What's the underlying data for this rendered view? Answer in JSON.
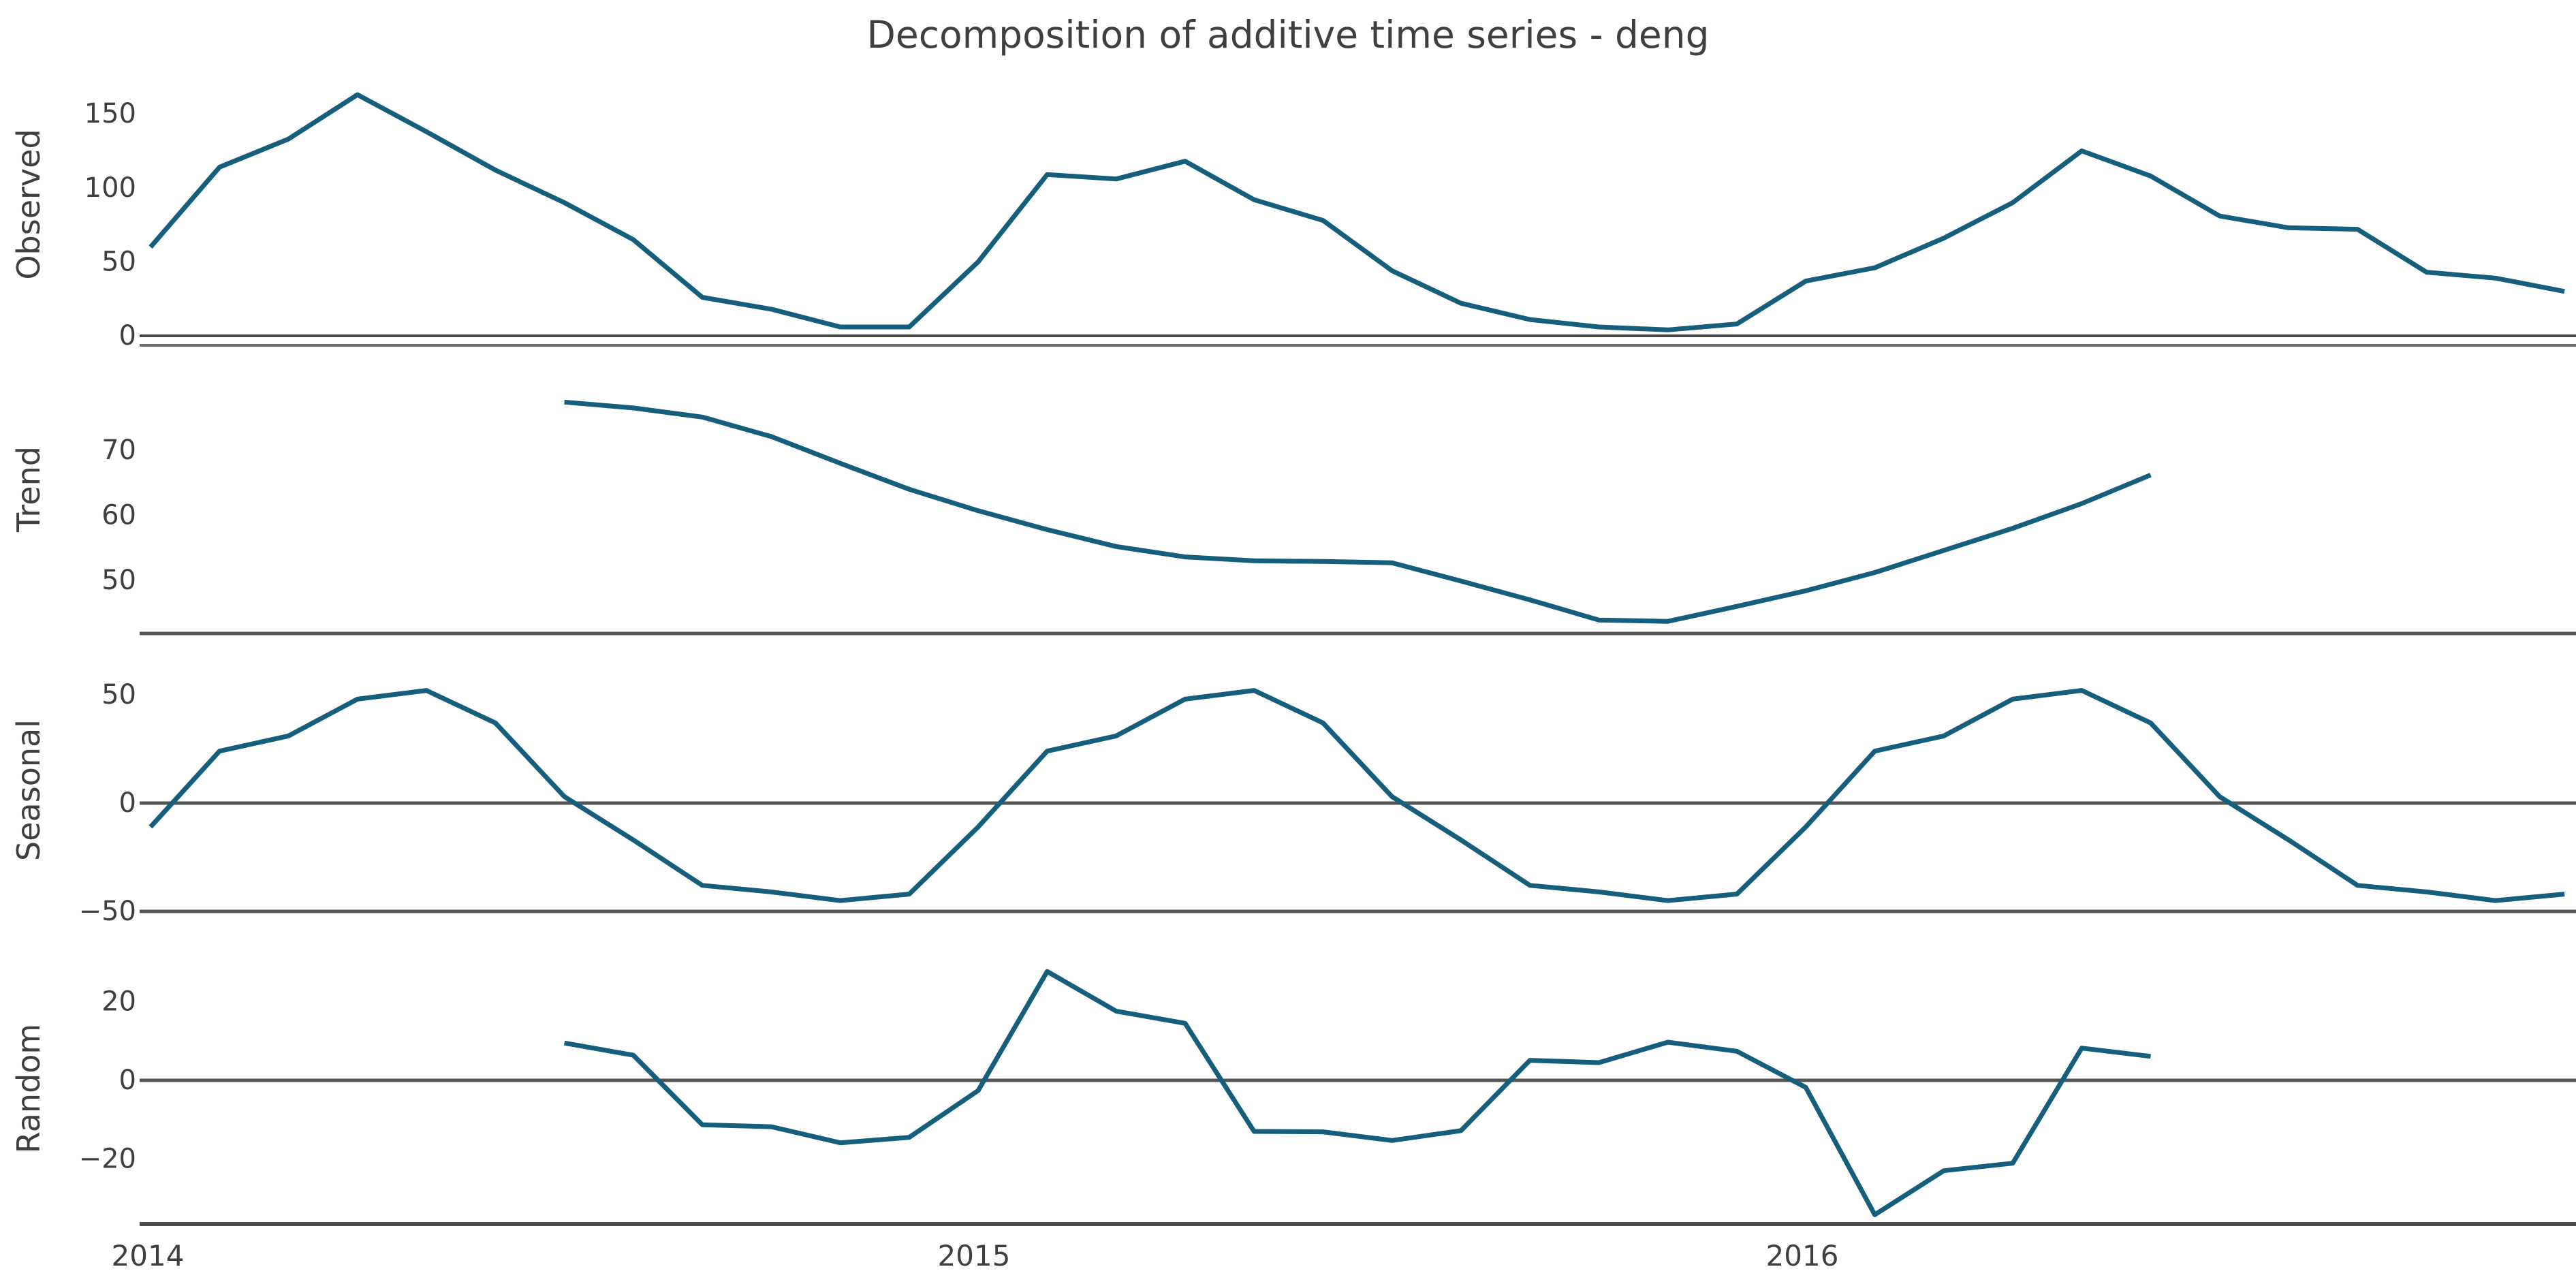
{
  "title": "Decomposition of additive time series - deng",
  "chart_data": {
    "type": "line",
    "title": "Decomposition of additive time series - deng",
    "subtitle": "",
    "legend": "none",
    "grid": "horizontal reference lines at 0 per panel",
    "x_axis": {
      "unit": "year",
      "tick_labels": [
        "2014",
        "2015",
        "2016"
      ],
      "range_start": 2014.0,
      "range_end": 2016.917,
      "frequency": "monthly",
      "n_points": 36
    },
    "line_color": "#155E7C",
    "axis_line_color": "#555555",
    "text_color": "#3f3f3f",
    "panels": [
      {
        "label": "Observed",
        "yticks": [
          0,
          50,
          100,
          150
        ],
        "start_month_index": 0,
        "values": [
          60,
          114,
          133,
          163,
          138,
          112,
          90,
          65,
          26,
          18,
          6,
          6,
          50,
          109,
          106,
          118,
          92,
          78,
          44,
          22,
          11,
          6,
          4,
          8,
          37,
          46,
          66,
          90,
          125,
          108,
          81,
          73,
          72,
          43,
          39,
          30
        ]
      },
      {
        "label": "Trend",
        "yticks": [
          50,
          60,
          70
        ],
        "start_month_index": 6,
        "values": [
          77.4,
          76.5,
          75.1,
          72.1,
          68.0,
          64.0,
          60.7,
          57.8,
          55.2,
          53.6,
          53.0,
          52.9,
          52.7,
          49.9,
          47.0,
          43.9,
          43.7,
          46.0,
          48.4,
          51.2,
          54.6,
          58.0,
          61.8,
          66.2
        ]
      },
      {
        "label": "Seasonal",
        "yticks": [
          -50,
          0,
          50
        ],
        "start_month_index": 0,
        "values": [
          -11,
          24,
          31,
          48,
          52,
          37,
          3,
          -17,
          -38,
          -41,
          -45,
          -42,
          -11,
          24,
          31,
          48,
          52,
          37,
          3,
          -17,
          -38,
          -41,
          -45,
          -42,
          -11,
          24,
          31,
          48,
          52,
          37,
          3,
          -17,
          -38,
          -41,
          -45,
          -42
        ]
      },
      {
        "label": "Random",
        "yticks": [
          -20,
          0,
          20
        ],
        "start_month_index": 6,
        "values": [
          9.5,
          6.4,
          -11.3,
          -11.8,
          -15.9,
          -14.5,
          -2.6,
          27.7,
          17.6,
          14.5,
          -13.0,
          -13.1,
          -15.3,
          -12.8,
          5.1,
          4.5,
          9.7,
          7.4,
          -1.8,
          -34.2,
          -23.0,
          -21.1,
          8.2,
          6.1
        ]
      }
    ]
  }
}
